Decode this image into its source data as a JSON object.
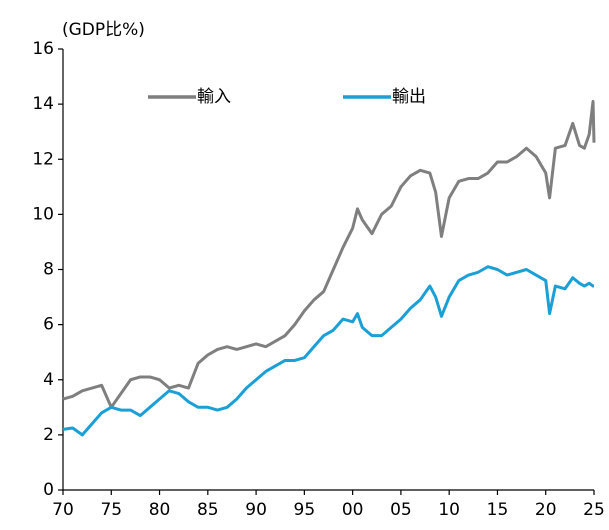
{
  "chart_data": {
    "type": "line",
    "ylabel": "(GDP比%)",
    "x": [
      1970,
      1971,
      1972,
      1973,
      1974,
      1975,
      1976,
      1977,
      1978,
      1979,
      1980,
      1981,
      1982,
      1983,
      1984,
      1985,
      1986,
      1987,
      1988,
      1989,
      1990,
      1991,
      1992,
      1993,
      1994,
      1995,
      1996,
      1997,
      1998,
      1999,
      2000,
      2000.5,
      2001,
      2002,
      2003,
      2004,
      2005,
      2006,
      2007,
      2008,
      2008.6,
      2009.2,
      2010,
      2011,
      2012,
      2013,
      2014,
      2015,
      2016,
      2017,
      2018,
      2019,
      2020,
      2020.4,
      2021,
      2022,
      2022.8,
      2023.5,
      2024,
      2024.5,
      2024.9,
      2025
    ],
    "series": [
      {
        "name": "輸入",
        "color": "#7f7f7f",
        "values": [
          3.3,
          3.4,
          3.6,
          3.7,
          3.8,
          3.0,
          3.5,
          4.0,
          4.1,
          4.1,
          4.0,
          3.7,
          3.8,
          3.7,
          4.6,
          4.9,
          5.1,
          5.2,
          5.1,
          5.2,
          5.3,
          5.2,
          5.4,
          5.6,
          6.0,
          6.5,
          6.9,
          7.2,
          8.0,
          8.8,
          9.5,
          10.2,
          9.8,
          9.3,
          10.0,
          10.3,
          11.0,
          11.4,
          11.6,
          11.5,
          10.8,
          9.2,
          10.6,
          11.2,
          11.3,
          11.3,
          11.5,
          11.9,
          11.9,
          12.1,
          12.4,
          12.1,
          11.5,
          10.6,
          12.4,
          12.5,
          13.3,
          12.5,
          12.4,
          12.9,
          14.1,
          12.6
        ]
      },
      {
        "name": "輸出",
        "color": "#1a9fd6",
        "values": [
          2.2,
          2.25,
          2.0,
          2.4,
          2.8,
          3.0,
          2.9,
          2.9,
          2.7,
          3.0,
          3.3,
          3.6,
          3.5,
          3.2,
          3.0,
          3.0,
          2.9,
          3.0,
          3.3,
          3.7,
          4.0,
          4.3,
          4.5,
          4.7,
          4.7,
          4.8,
          5.2,
          5.6,
          5.8,
          6.2,
          6.1,
          6.4,
          5.9,
          5.6,
          5.6,
          5.9,
          6.2,
          6.6,
          6.9,
          7.4,
          7.0,
          6.3,
          7.0,
          7.6,
          7.8,
          7.9,
          8.1,
          8.0,
          7.8,
          7.9,
          8.0,
          7.8,
          7.6,
          6.4,
          7.4,
          7.3,
          7.7,
          7.5,
          7.4,
          7.5,
          7.4,
          7.4
        ]
      }
    ],
    "xlim": [
      1970,
      2025
    ],
    "xticks": [
      {
        "value": 1970,
        "label": "70"
      },
      {
        "value": 1975,
        "label": "75"
      },
      {
        "value": 1980,
        "label": "80"
      },
      {
        "value": 1985,
        "label": "85"
      },
      {
        "value": 1990,
        "label": "90"
      },
      {
        "value": 1995,
        "label": "95"
      },
      {
        "value": 2000,
        "label": "00"
      },
      {
        "value": 2005,
        "label": "05"
      },
      {
        "value": 2010,
        "label": "10"
      },
      {
        "value": 2015,
        "label": "15"
      },
      {
        "value": 2020,
        "label": "20"
      },
      {
        "value": 2025,
        "label": "25"
      }
    ],
    "ylim": [
      0,
      16
    ],
    "yticks": [
      0,
      2,
      4,
      6,
      8,
      10,
      12,
      14,
      16
    ],
    "grid": false,
    "legend": "top"
  }
}
